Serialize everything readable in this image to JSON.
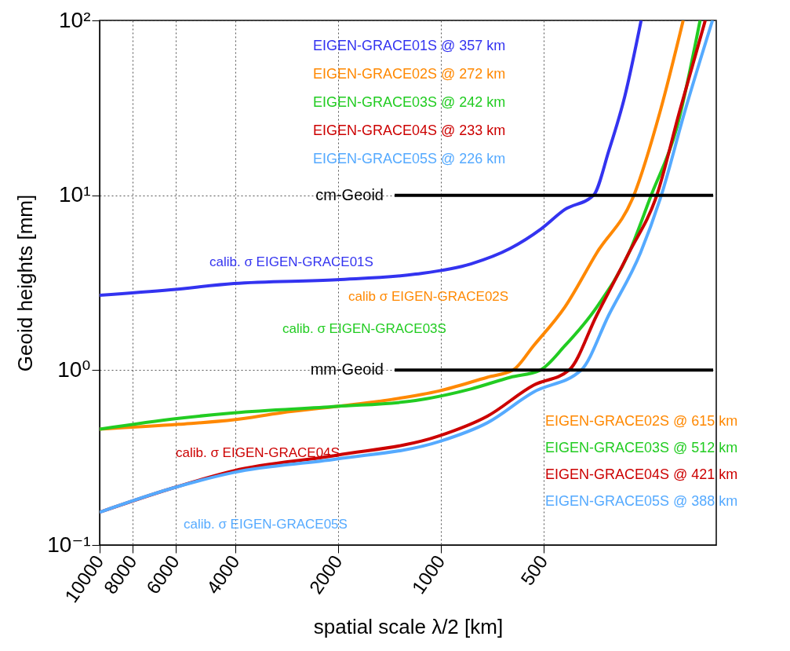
{
  "chart_data": {
    "type": "line",
    "xlabel": "spatial scale λ/2 [km]",
    "ylabel": "Geoid heights [mm]",
    "log": "xy",
    "grid": true,
    "line_style": "solid",
    "marker": "none",
    "xlim": [
      10000,
      156
    ],
    "xticks": [
      10000,
      8000,
      6000,
      4000,
      2000,
      1000,
      500
    ],
    "ylim": [
      0.1,
      100
    ],
    "yticks": [
      {
        "value": 0.1,
        "label": "10⁻¹"
      },
      {
        "value": 1,
        "label": "10⁰"
      },
      {
        "value": 10,
        "label": "10¹"
      },
      {
        "value": 100,
        "label": "10²"
      }
    ],
    "series": [
      {
        "name": "calib. σ EIGEN-GRACE01S",
        "color": "#3333f0",
        "x": [
          10000,
          6190,
          4040,
          2020,
          1186,
          817,
          626,
          508,
          433,
          357,
          322,
          289,
          259
        ],
        "values": [
          2.68,
          2.88,
          3.13,
          3.29,
          3.54,
          4.05,
          4.97,
          6.43,
          8.3,
          10,
          18,
          37,
          100
        ]
      },
      {
        "name": "calib σ EIGEN-GRACE02S",
        "color": "#ff8800",
        "x": [
          10000,
          5870,
          4040,
          2940,
          2020,
          1390,
          1013,
          731,
          615,
          535,
          433,
          349,
          272,
          228,
          195
        ],
        "values": [
          0.46,
          0.49,
          0.52,
          0.57,
          0.62,
          0.68,
          0.76,
          0.91,
          1,
          1.38,
          2.3,
          4.7,
          10,
          30,
          100
        ]
      },
      {
        "name": "calib. σ EIGEN-GRACE03S",
        "color": "#22cc22",
        "x": [
          10000,
          5870,
          4040,
          2020,
          1186,
          817,
          626,
          512,
          433,
          349,
          281,
          242,
          204,
          174
        ],
        "values": [
          0.46,
          0.53,
          0.57,
          0.62,
          0.67,
          0.78,
          0.91,
          1,
          1.38,
          2.3,
          4.7,
          10,
          24,
          100
        ]
      },
      {
        "name": "calib. σ EIGEN-GRACE04S",
        "color": "#cc0000",
        "x": [
          10000,
          6190,
          4040,
          2020,
          1013,
          731,
          535,
          421,
          349,
          281,
          233,
          200,
          168
        ],
        "values": [
          0.154,
          0.21,
          0.266,
          0.326,
          0.42,
          0.545,
          0.82,
          1,
          2.07,
          4.7,
          10,
          30,
          100
        ]
      },
      {
        "name": "calib. σ EIGEN-GRACE05S",
        "color": "#55aaff",
        "x": [
          10000,
          6190,
          4040,
          2020,
          1013,
          731,
          535,
          388,
          322,
          260,
          226,
          193,
          160
        ],
        "values": [
          0.154,
          0.21,
          0.26,
          0.31,
          0.39,
          0.5,
          0.75,
          1,
          2.07,
          4.7,
          10,
          30,
          100
        ]
      }
    ],
    "ref_lines": [
      {
        "axis": "y",
        "value": 10,
        "label": "cm-Geoid"
      },
      {
        "axis": "y",
        "value": 1,
        "label": "mm-Geoid"
      }
    ],
    "annotations": [
      "EIGEN-GRACE01S @ 357 km",
      "EIGEN-GRACE02S @ 272 km",
      "EIGEN-GRACE03S @ 242 km",
      "EIGEN-GRACE04S @ 233 km",
      "EIGEN-GRACE05S @ 226 km",
      "EIGEN-GRACE02S @ 615 km",
      "EIGEN-GRACE03S @ 512 km",
      "EIGEN-GRACE04S @ 421 km",
      "EIGEN-GRACE05S @ 388 km"
    ]
  }
}
